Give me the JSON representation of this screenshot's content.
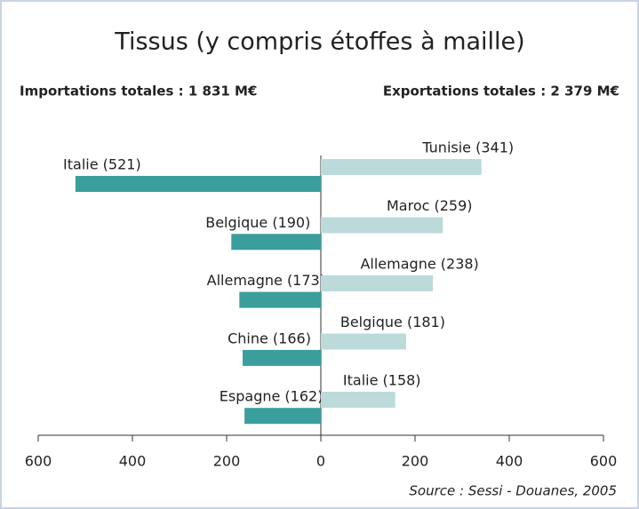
{
  "chart_data": {
    "type": "diverging-bar",
    "title": "Tissus (y compris étoffes à maille)",
    "source": "Source : Sessi - Douanes, 2005",
    "series": [
      {
        "name": "Importations totales : 1 831 M€",
        "color": "#3a9e9c",
        "values": [
          -521,
          -190,
          -173,
          -166,
          -162
        ],
        "value_labels": [
          "Italie (521)",
          "Belgique (190)",
          "Allemagne (173)",
          "Chine (166)",
          "Espagne (162)"
        ]
      },
      {
        "name": "Exportations totales : 2 379 M€",
        "color": "#bcdada",
        "values": [
          341,
          259,
          238,
          181,
          158
        ],
        "value_labels": [
          "Tunisie (341)",
          "Maroc (259)",
          "Allemagne (238)",
          "Belgique (181)",
          "Italie (158)"
        ]
      }
    ],
    "xlim": [
      -600,
      600
    ],
    "xticks": [
      {
        "value": -600,
        "label": "600"
      },
      {
        "value": -400,
        "label": "400"
      },
      {
        "value": -200,
        "label": "200"
      },
      0,
      200,
      400,
      600
    ]
  }
}
